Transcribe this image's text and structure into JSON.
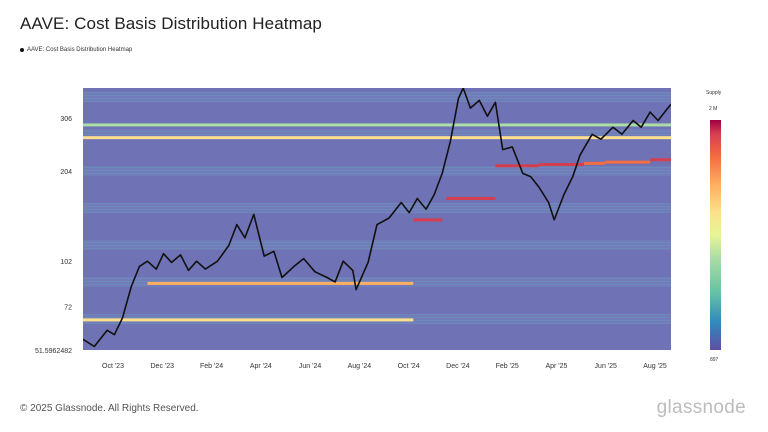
{
  "title": "AAVE: Cost Basis Distribution Heatmap",
  "legend_label": "AAVE: Cost Basis Distribution Heatmap",
  "footer": "© 2025 Glassnode. All Rights Reserved.",
  "brand": "glassnode",
  "colors": {
    "background_cell": "#6f72b5",
    "price_line": "#111111",
    "scale": [
      "#5e4fa2",
      "#3288bd",
      "#66c2a5",
      "#abdda4",
      "#e6f598",
      "#fee08b",
      "#fdae61",
      "#f46d43",
      "#d53e4f",
      "#9e0142"
    ]
  },
  "colorbar": {
    "title": "Supply",
    "max_label": "2 M",
    "min_label": "897"
  },
  "chart_data": {
    "type": "heatmap",
    "title": "AAVE: Cost Basis Distribution Heatmap",
    "series": [
      {
        "name": "AAVE: Cost Basis Distribution Heatmap",
        "type": "line"
      }
    ],
    "y_ticks": [
      {
        "label": "306",
        "value": 306
      },
      {
        "label": "204",
        "value": 204
      },
      {
        "label": "102",
        "value": 102
      },
      {
        "label": "72",
        "value": 72
      },
      {
        "label": "51.5962482",
        "value": 51.5962482
      }
    ],
    "x_ticks": [
      "Oct '23",
      "Dec '23",
      "Feb '24",
      "Apr '24",
      "Jun '24",
      "Aug '24",
      "Oct '24",
      "Dec '24",
      "Feb '25",
      "Apr '25",
      "Jun '25",
      "Aug '25"
    ],
    "x_range": [
      "2023-09-01",
      "2025-08-31"
    ],
    "y_range": [
      51.5962482,
      385
    ],
    "y_scale": "log",
    "price": [
      [
        "2023-09-01",
        56
      ],
      [
        "2023-09-15",
        53
      ],
      [
        "2023-10-01",
        60
      ],
      [
        "2023-10-10",
        58
      ],
      [
        "2023-10-20",
        66
      ],
      [
        "2023-10-31",
        84
      ],
      [
        "2023-11-10",
        98
      ],
      [
        "2023-11-20",
        102
      ],
      [
        "2023-12-01",
        96
      ],
      [
        "2023-12-10",
        108
      ],
      [
        "2023-12-20",
        101
      ],
      [
        "2023-12-31",
        107
      ],
      [
        "2024-01-10",
        95
      ],
      [
        "2024-01-20",
        102
      ],
      [
        "2024-01-31",
        96
      ],
      [
        "2024-02-15",
        102
      ],
      [
        "2024-02-29",
        115
      ],
      [
        "2024-03-10",
        135
      ],
      [
        "2024-03-20",
        122
      ],
      [
        "2024-03-31",
        146
      ],
      [
        "2024-04-13",
        106
      ],
      [
        "2024-04-25",
        110
      ],
      [
        "2024-05-05",
        90
      ],
      [
        "2024-05-20",
        98
      ],
      [
        "2024-06-01",
        104
      ],
      [
        "2024-06-15",
        94
      ],
      [
        "2024-06-30",
        90
      ],
      [
        "2024-07-10",
        87
      ],
      [
        "2024-07-20",
        102
      ],
      [
        "2024-08-01",
        95
      ],
      [
        "2024-08-05",
        82
      ],
      [
        "2024-08-20",
        101
      ],
      [
        "2024-08-31",
        135
      ],
      [
        "2024-09-15",
        142
      ],
      [
        "2024-09-30",
        160
      ],
      [
        "2024-10-10",
        148
      ],
      [
        "2024-10-20",
        165
      ],
      [
        "2024-10-31",
        152
      ],
      [
        "2024-11-10",
        170
      ],
      [
        "2024-11-20",
        200
      ],
      [
        "2024-11-30",
        255
      ],
      [
        "2024-12-10",
        355
      ],
      [
        "2024-12-16",
        385
      ],
      [
        "2024-12-25",
        330
      ],
      [
        "2025-01-05",
        350
      ],
      [
        "2025-01-15",
        310
      ],
      [
        "2025-01-25",
        345
      ],
      [
        "2025-02-03",
        240
      ],
      [
        "2025-02-15",
        245
      ],
      [
        "2025-02-28",
        200
      ],
      [
        "2025-03-10",
        195
      ],
      [
        "2025-03-20",
        180
      ],
      [
        "2025-04-01",
        160
      ],
      [
        "2025-04-08",
        140
      ],
      [
        "2025-04-20",
        170
      ],
      [
        "2025-05-01",
        195
      ],
      [
        "2025-05-10",
        230
      ],
      [
        "2025-05-25",
        270
      ],
      [
        "2025-06-05",
        260
      ],
      [
        "2025-06-20",
        285
      ],
      [
        "2025-07-01",
        270
      ],
      [
        "2025-07-15",
        300
      ],
      [
        "2025-07-25",
        285
      ],
      [
        "2025-08-05",
        320
      ],
      [
        "2025-08-15",
        300
      ],
      [
        "2025-08-25",
        325
      ],
      [
        "2025-08-31",
        340
      ]
    ],
    "bands": [
      {
        "price": 263,
        "start": "2023-09-01",
        "end": "2025-08-31",
        "level": 0.55
      },
      {
        "price": 290,
        "start": "2023-09-01",
        "end": "2025-08-31",
        "level": 0.3
      },
      {
        "price": 86,
        "start": "2023-11-20",
        "end": "2024-10-15",
        "level": 0.65
      },
      {
        "price": 65,
        "start": "2023-09-01",
        "end": "2024-10-15",
        "level": 0.6
      },
      {
        "price": 140,
        "start": "2024-10-15",
        "end": "2024-11-20",
        "level": 0.85
      },
      {
        "price": 165,
        "start": "2024-11-25",
        "end": "2025-01-25",
        "level": 0.85
      },
      {
        "price": 212,
        "start": "2025-01-25",
        "end": "2025-03-20",
        "level": 0.85
      },
      {
        "price": 214,
        "start": "2025-03-20",
        "end": "2025-05-15",
        "level": 0.85
      },
      {
        "price": 216,
        "start": "2025-05-15",
        "end": "2025-06-10",
        "level": 0.75
      },
      {
        "price": 218,
        "start": "2025-06-10",
        "end": "2025-08-05",
        "level": 0.8
      },
      {
        "price": 222,
        "start": "2025-08-05",
        "end": "2025-08-31",
        "level": 0.9
      }
    ]
  }
}
